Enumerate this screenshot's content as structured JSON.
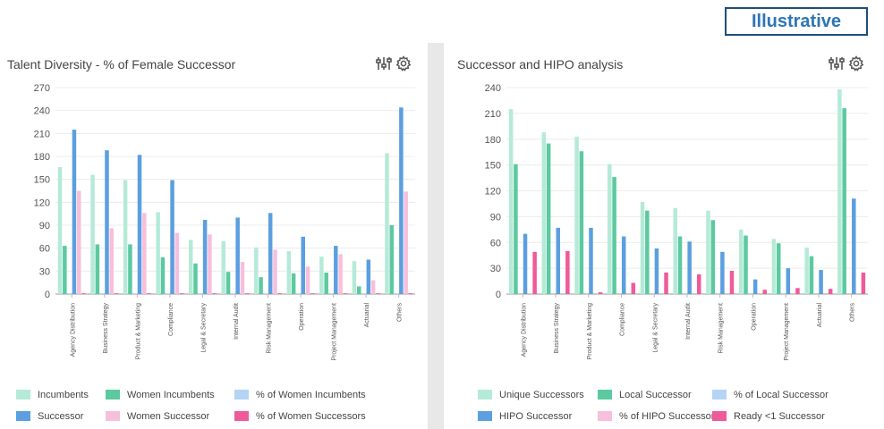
{
  "badge": "Illustrative",
  "left_panel": {
    "title": "Talent Diversity - % of Female Successor",
    "icons": [
      "sliders-icon",
      "gear-icon"
    ]
  },
  "right_panel": {
    "title": "Successor and HIPO analysis",
    "icons": [
      "sliders-icon",
      "gear-icon"
    ]
  },
  "chart_data": [
    {
      "type": "bar",
      "title": "Talent Diversity - % of Female Successor",
      "categories": [
        "Agency Distribution",
        "Business Strategy",
        "Product & Marketing",
        "Compliance",
        "Legal & Secretary",
        "Internal Audit",
        "Risk Management",
        "Operation",
        "Project Management",
        "Actuarial",
        "Others"
      ],
      "ylim": [
        0,
        270
      ],
      "yticks": [
        0,
        30,
        60,
        90,
        120,
        150,
        180,
        210,
        240,
        270
      ],
      "grid": true,
      "legend_position": "bottom",
      "series": [
        {
          "name": "Incumbents",
          "color": "#b5ead8",
          "values": [
            166,
            156,
            149,
            107,
            71,
            69,
            61,
            56,
            49,
            43,
            184
          ]
        },
        {
          "name": "Women Incumbents",
          "color": "#5cc9a1",
          "values": [
            63,
            65,
            65,
            48,
            40,
            29,
            22,
            27,
            28,
            10,
            90
          ]
        },
        {
          "name": "% of Women Incumbents",
          "color": "#b3d4f5",
          "values": [
            1,
            1,
            1,
            1,
            1,
            1,
            1,
            1,
            1,
            1,
            1
          ]
        },
        {
          "name": "Successor",
          "color": "#5b9fe0",
          "values": [
            215,
            188,
            182,
            149,
            97,
            100,
            106,
            75,
            63,
            45,
            244
          ]
        },
        {
          "name": "Women Successor",
          "color": "#f7bfdc",
          "values": [
            135,
            86,
            106,
            80,
            78,
            42,
            58,
            36,
            52,
            18,
            134
          ]
        },
        {
          "name": "% of Women Successors",
          "color": "#ef5a9a",
          "values": [
            1,
            1,
            1,
            1,
            1,
            1,
            1,
            1,
            1,
            1,
            1
          ]
        }
      ]
    },
    {
      "type": "bar",
      "title": "Successor and HIPO analysis",
      "categories": [
        "Agency Distribution",
        "Business Strategy",
        "Product & Marketing",
        "Compliance",
        "Legal & Secretary",
        "Internal Audit",
        "Risk Management",
        "Operation",
        "Project Management",
        "Actuarial",
        "Others"
      ],
      "ylim": [
        0,
        240
      ],
      "yticks": [
        0,
        30,
        60,
        90,
        120,
        150,
        180,
        210,
        240
      ],
      "grid": true,
      "legend_position": "bottom",
      "series": [
        {
          "name": "Unique Successors",
          "color": "#b5ead8",
          "values": [
            215,
            188,
            183,
            151,
            107,
            100,
            97,
            75,
            64,
            54,
            238
          ]
        },
        {
          "name": "Local Successor",
          "color": "#5cc9a1",
          "values": [
            151,
            175,
            166,
            136,
            97,
            67,
            86,
            68,
            59,
            44,
            216
          ]
        },
        {
          "name": "% of Local Successor",
          "color": "#b3d4f5",
          "values": [
            0,
            0,
            0,
            0,
            0,
            0,
            0,
            0,
            0,
            0,
            0
          ]
        },
        {
          "name": "HIPO Successor",
          "color": "#5b9fe0",
          "values": [
            70,
            77,
            77,
            67,
            53,
            61,
            49,
            17,
            30,
            28,
            111
          ]
        },
        {
          "name": "% of HIPO Successor",
          "color": "#f7bfdc",
          "values": [
            0,
            0,
            0,
            0,
            0,
            0,
            0,
            0,
            0,
            0,
            0
          ]
        },
        {
          "name": "Ready <1 Successor",
          "color": "#ef5a9a",
          "values": [
            49,
            50,
            2,
            13,
            25,
            23,
            27,
            5,
            7,
            6,
            25
          ]
        }
      ]
    }
  ]
}
